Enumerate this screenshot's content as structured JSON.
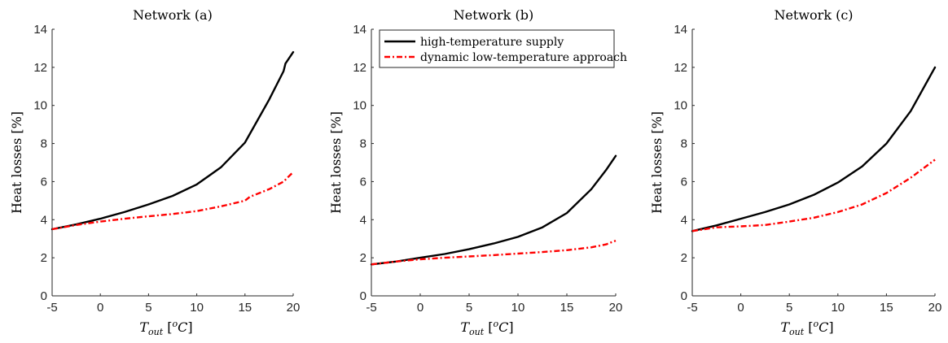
{
  "chart_data": [
    {
      "type": "line",
      "title": "Network (a)",
      "xlabel": "T_out [°C]",
      "ylabel": "Heat losses [%]",
      "xlim": [
        -5,
        20
      ],
      "ylim": [
        0,
        14
      ],
      "xticks": [
        -5,
        0,
        5,
        10,
        15,
        20
      ],
      "yticks": [
        0,
        2,
        4,
        6,
        8,
        10,
        12,
        14
      ],
      "grid": false,
      "legend": false,
      "series": [
        {
          "name": "high-temperature supply",
          "color": "#000000",
          "style": "solid",
          "x": [
            -5,
            -2.5,
            0,
            2.5,
            5,
            7.5,
            10,
            12.5,
            15,
            15.5,
            17.5,
            19,
            19.2,
            20
          ],
          "y": [
            3.5,
            3.75,
            4.05,
            4.4,
            4.8,
            5.25,
            5.85,
            6.75,
            8.05,
            8.5,
            10.3,
            11.8,
            12.2,
            12.8
          ]
        },
        {
          "name": "dynamic low-temperature approach",
          "color": "#ff0000",
          "style": "dashdot",
          "x": [
            -5,
            -2.5,
            0,
            2.5,
            5,
            7.5,
            10,
            12.5,
            15,
            15.5,
            17.5,
            19,
            20
          ],
          "y": [
            3.5,
            3.72,
            3.9,
            4.05,
            4.18,
            4.3,
            4.45,
            4.7,
            5.0,
            5.2,
            5.6,
            6.0,
            6.5
          ]
        }
      ]
    },
    {
      "type": "line",
      "title": "Network (b)",
      "xlabel": "T_out [°C]",
      "ylabel": "Heat losses [%]",
      "xlim": [
        -5,
        20
      ],
      "ylim": [
        0,
        14
      ],
      "xticks": [
        -5,
        0,
        5,
        10,
        15,
        20
      ],
      "yticks": [
        0,
        2,
        4,
        6,
        8,
        10,
        12,
        14
      ],
      "grid": false,
      "legend": true,
      "legend_position": "top-left",
      "series": [
        {
          "name": "high-temperature supply",
          "color": "#000000",
          "style": "solid",
          "x": [
            -5,
            -2.5,
            0,
            2.5,
            5,
            7.5,
            10,
            12.5,
            15,
            17.5,
            19,
            20
          ],
          "y": [
            1.65,
            1.8,
            2.0,
            2.2,
            2.45,
            2.75,
            3.1,
            3.6,
            4.35,
            5.6,
            6.6,
            7.35
          ]
        },
        {
          "name": "dynamic low-temperature approach",
          "color": "#ff0000",
          "style": "dashdot",
          "x": [
            -5,
            -2.5,
            0,
            2.5,
            5,
            7.5,
            10,
            12.5,
            15,
            17.5,
            19,
            20
          ],
          "y": [
            1.65,
            1.8,
            1.92,
            2.0,
            2.07,
            2.14,
            2.22,
            2.3,
            2.4,
            2.55,
            2.7,
            2.9
          ]
        }
      ]
    },
    {
      "type": "line",
      "title": "Network (c)",
      "xlabel": "T_out [°C]",
      "ylabel": "Heat losses [%]",
      "xlim": [
        -5,
        20
      ],
      "ylim": [
        0,
        14
      ],
      "xticks": [
        -5,
        0,
        5,
        10,
        15,
        20
      ],
      "yticks": [
        0,
        2,
        4,
        6,
        8,
        10,
        12,
        14
      ],
      "grid": false,
      "legend": false,
      "series": [
        {
          "name": "high-temperature supply",
          "color": "#000000",
          "style": "solid",
          "x": [
            -5,
            -2.5,
            0,
            2.5,
            5,
            7.5,
            10,
            12.5,
            15,
            17.5,
            20
          ],
          "y": [
            3.4,
            3.7,
            4.05,
            4.4,
            4.8,
            5.3,
            5.95,
            6.8,
            8.0,
            9.7,
            12.0
          ]
        },
        {
          "name": "dynamic low-temperature approach",
          "color": "#ff0000",
          "style": "dashdot",
          "x": [
            -5,
            -2.5,
            0,
            2.5,
            5,
            7.5,
            10,
            12.5,
            15,
            17.5,
            20
          ],
          "y": [
            3.4,
            3.6,
            3.65,
            3.72,
            3.9,
            4.1,
            4.4,
            4.8,
            5.4,
            6.2,
            7.15
          ]
        }
      ]
    }
  ]
}
